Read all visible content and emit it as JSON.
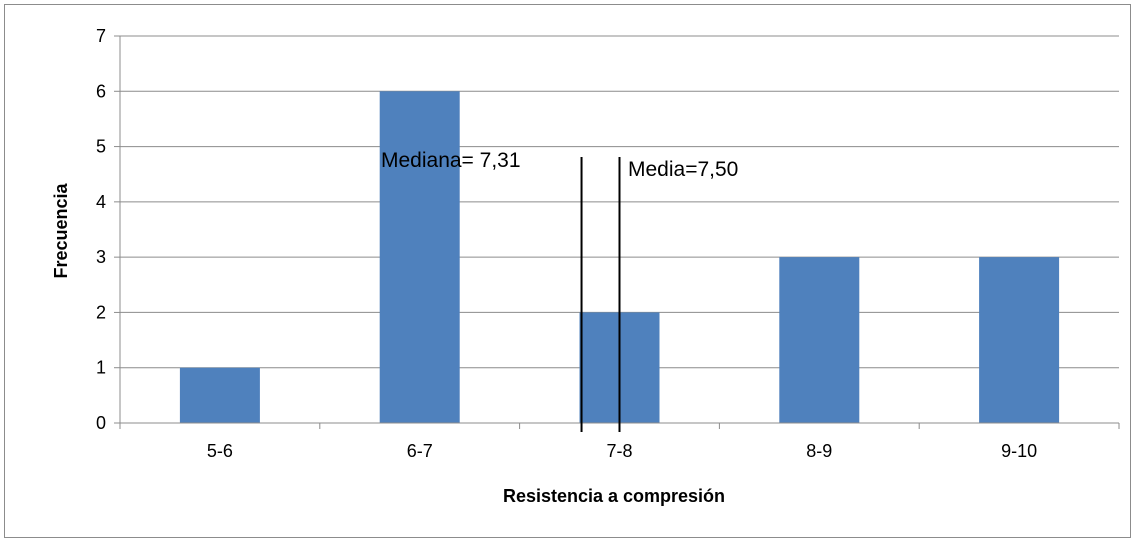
{
  "chart_data": {
    "type": "bar",
    "categories": [
      "5-6",
      "6-7",
      "7-8",
      "8-9",
      "9-10"
    ],
    "values": [
      1,
      6,
      2,
      3,
      3
    ],
    "xlabel": "Resistencia a compresión",
    "ylabel": "Frecuencia",
    "ylim": [
      0,
      7
    ],
    "yticks": [
      0,
      1,
      2,
      3,
      4,
      5,
      6,
      7
    ],
    "grid": true,
    "legend": "none",
    "bar_color": "#4f81bd",
    "annotations": [
      {
        "label": "Mediana= 7,31",
        "x": 7.31
      },
      {
        "label": "Media=7,50",
        "x": 7.5
      }
    ]
  }
}
